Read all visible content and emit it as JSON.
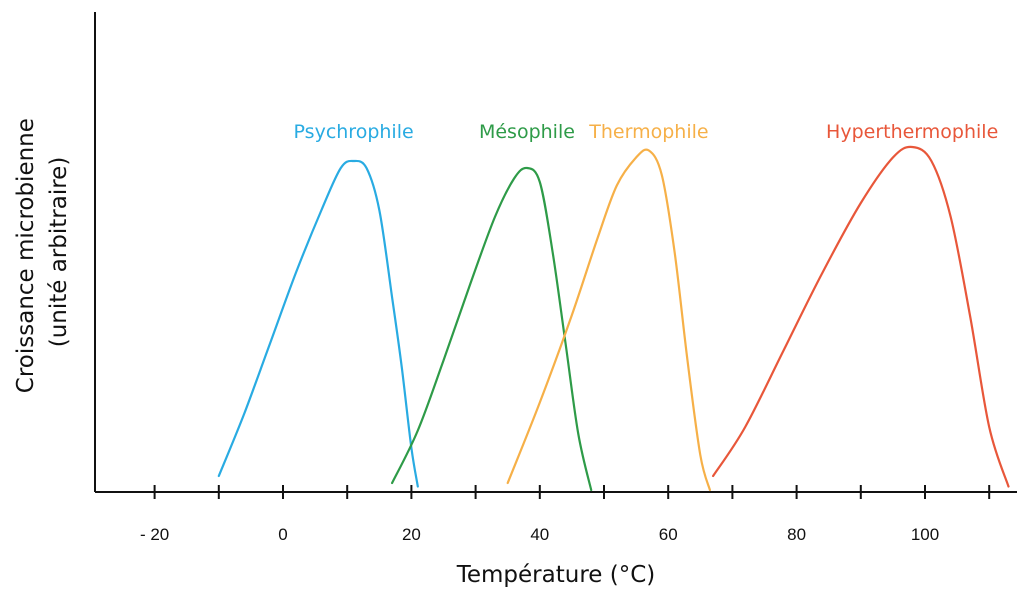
{
  "chart_data": {
    "type": "line",
    "xlabel": "Température (°C)",
    "ylabel": [
      "Croissance microbienne",
      "(unité arbitraire)"
    ],
    "xlim": [
      -30,
      115
    ],
    "ylim": [
      0,
      1
    ],
    "x_ticks": [
      -20,
      -10,
      0,
      10,
      20,
      30,
      40,
      50,
      60,
      70,
      80,
      90,
      100,
      110
    ],
    "x_tick_labels": [
      {
        "value": -20,
        "label": "- 20"
      },
      {
        "value": 0,
        "label": "0"
      },
      {
        "value": 20,
        "label": "20"
      },
      {
        "value": 40,
        "label": "40"
      },
      {
        "value": 60,
        "label": "60"
      },
      {
        "value": 80,
        "label": "80"
      },
      {
        "value": 100,
        "label": "100"
      }
    ],
    "grid": false,
    "legend": "labels above curves",
    "series": [
      {
        "name": "Psychrophile",
        "color": "#29ABE2",
        "points": [
          [
            -10,
            0.04
          ],
          [
            -6,
            0.22
          ],
          [
            -2,
            0.42
          ],
          [
            2,
            0.62
          ],
          [
            6,
            0.8
          ],
          [
            9,
            0.92
          ],
          [
            11,
            0.94
          ],
          [
            13,
            0.92
          ],
          [
            15,
            0.8
          ],
          [
            17,
            0.55
          ],
          [
            18.5,
            0.35
          ],
          [
            20,
            0.12
          ],
          [
            21,
            0.01
          ]
        ]
      },
      {
        "name": "Mésophile",
        "color": "#2E9B48",
        "points": [
          [
            17,
            0.02
          ],
          [
            21,
            0.17
          ],
          [
            25,
            0.37
          ],
          [
            29,
            0.58
          ],
          [
            33,
            0.78
          ],
          [
            36,
            0.89
          ],
          [
            38,
            0.92
          ],
          [
            40,
            0.88
          ],
          [
            42,
            0.68
          ],
          [
            44,
            0.42
          ],
          [
            46,
            0.16
          ],
          [
            48,
            0.0
          ]
        ]
      },
      {
        "name": "Thermophile",
        "color": "#F6B048",
        "points": [
          [
            35,
            0.02
          ],
          [
            40,
            0.25
          ],
          [
            45,
            0.5
          ],
          [
            49,
            0.72
          ],
          [
            52,
            0.87
          ],
          [
            55,
            0.95
          ],
          [
            57,
            0.97
          ],
          [
            59,
            0.9
          ],
          [
            61,
            0.68
          ],
          [
            63,
            0.37
          ],
          [
            65,
            0.1
          ],
          [
            66.5,
            0.0
          ]
        ]
      },
      {
        "name": "Hyperthermophile",
        "color": "#E8573A",
        "points": [
          [
            67,
            0.04
          ],
          [
            72,
            0.18
          ],
          [
            78,
            0.4
          ],
          [
            84,
            0.62
          ],
          [
            90,
            0.82
          ],
          [
            95,
            0.95
          ],
          [
            98,
            0.98
          ],
          [
            101,
            0.94
          ],
          [
            104,
            0.78
          ],
          [
            107,
            0.5
          ],
          [
            110,
            0.18
          ],
          [
            113,
            0.01
          ]
        ]
      }
    ]
  }
}
